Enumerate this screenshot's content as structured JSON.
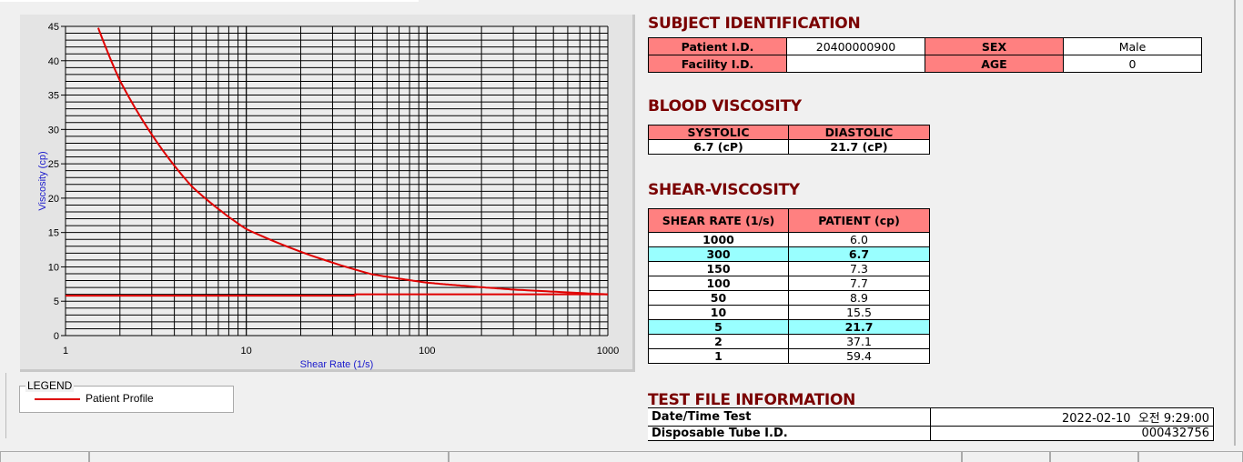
{
  "chart_data": {
    "type": "line",
    "xlabel": "Shear Rate (1/s)",
    "ylabel": "Viscosity (cp)",
    "x_scale": "log",
    "xlim": [
      1,
      1000
    ],
    "ylim": [
      0,
      45
    ],
    "x_ticks": [
      "1",
      "10",
      "100",
      "1000"
    ],
    "y_ticks": [
      "0",
      "5",
      "10",
      "15",
      "20",
      "25",
      "30",
      "35",
      "40",
      "45"
    ],
    "grid": true,
    "series": [
      {
        "name": "Patient Profile",
        "color": "#e00000",
        "x": [
          1,
          2,
          5,
          10,
          50,
          100,
          150,
          300,
          1000
        ],
        "y": [
          59.4,
          37.1,
          21.7,
          15.5,
          8.9,
          7.7,
          7.3,
          6.7,
          6.0
        ]
      },
      {
        "color": "#e00000",
        "x": [
          1,
          40,
          40,
          1000
        ],
        "y": [
          5.8,
          5.8,
          6.0,
          6.0
        ]
      }
    ],
    "legend": {
      "title": "LEGEND",
      "position": "bottom-left"
    }
  },
  "subject": {
    "title": "SUBJECT IDENTIFICATION",
    "patient_id_label": "Patient I.D.",
    "patient_id": "20400000900",
    "sex_label": "SEX",
    "sex": "Male",
    "facility_label": "Facility I.D.",
    "facility": "",
    "age_label": "AGE",
    "age": "0"
  },
  "blood": {
    "title": "BLOOD VISCOSITY",
    "systolic_label": "SYSTOLIC",
    "diastolic_label": "DIASTOLIC",
    "systolic": "6.7 (cP)",
    "diastolic": "21.7 (cP)"
  },
  "shear": {
    "title": "SHEAR-VISCOSITY",
    "col1": "SHEAR RATE (1/s)",
    "col2": "PATIENT (cp)",
    "rows": [
      {
        "rate": "1000",
        "value": "6.0"
      },
      {
        "rate": "300",
        "value": "6.7",
        "hl": true
      },
      {
        "rate": "150",
        "value": "7.3"
      },
      {
        "rate": "100",
        "value": "7.7"
      },
      {
        "rate": "50",
        "value": "8.9"
      },
      {
        "rate": "10",
        "value": "15.5"
      },
      {
        "rate": "5",
        "value": "21.7",
        "hl": true
      },
      {
        "rate": "2",
        "value": "37.1"
      },
      {
        "rate": "1",
        "value": "59.4"
      }
    ]
  },
  "testfile": {
    "title": "TEST FILE INFORMATION",
    "date_label": "Date/Time Test",
    "date": "2022-02-10  오전 9:29:00",
    "tube_label": "Disposable Tube I.D.",
    "tube": "000432756"
  }
}
